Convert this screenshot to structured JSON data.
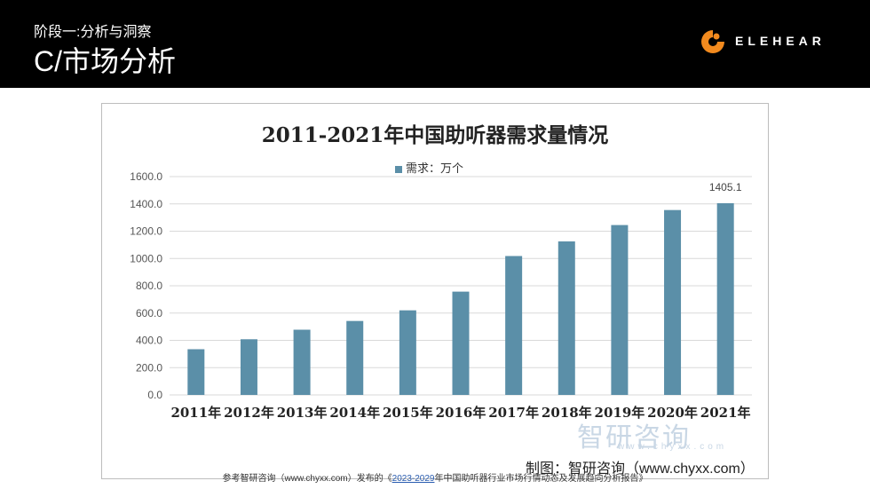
{
  "header": {
    "stage": "阶段一:分析与洞察",
    "title": "C/市场分析",
    "logo_text": "ELEHEAR",
    "logo_color": "#f28a1e"
  },
  "chart_data": {
    "type": "bar",
    "title": "2011-2021年中国助听器需求量情况",
    "series": [
      {
        "name": "需求：万个",
        "color": "#5b8fa8",
        "values": [
          335,
          408,
          478,
          542,
          620,
          757,
          1018,
          1125,
          1245,
          1355,
          1405.1
        ]
      }
    ],
    "categories": [
      "2011年",
      "2012年",
      "2013年",
      "2014年",
      "2015年",
      "2016年",
      "2017年",
      "2018年",
      "2019年",
      "2020年",
      "2021年"
    ],
    "data_labels": [
      {
        "index": 10,
        "text": "1405.1"
      }
    ],
    "yticks": [
      "0.0",
      "200.0",
      "400.0",
      "600.0",
      "800.0",
      "1000.0",
      "1200.0",
      "1400.0",
      "1600.0"
    ],
    "ylim": [
      0,
      1600
    ],
    "grid": true,
    "legend": "top-center"
  },
  "watermark": {
    "text": "智研咨询",
    "sub": "www.chyxx.com"
  },
  "credit": "制图：智研咨询（www.chyxx.com）",
  "footer": {
    "prefix": "参考智研咨询（www.chyxx.com）发布的《",
    "link": "2023-2029",
    "suffix": "年中国助听器行业市场行情动态及发展趋向分析报告》"
  }
}
